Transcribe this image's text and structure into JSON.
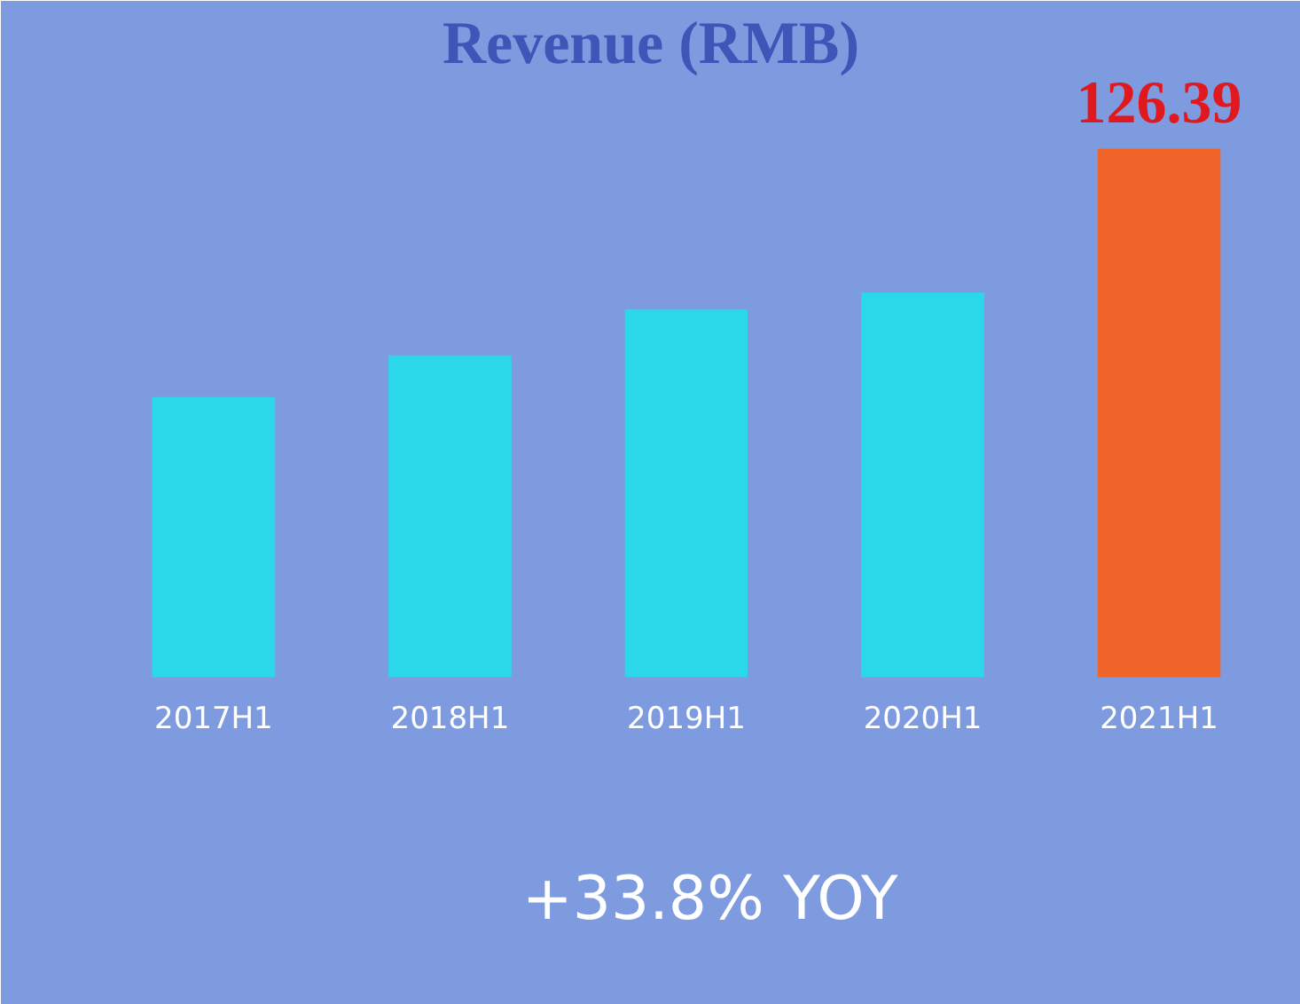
{
  "chart_data": {
    "type": "bar",
    "title": "Revenue (RMB)",
    "categories": [
      "2017H1",
      "2018H1",
      "2019H1",
      "2020H1",
      "2021H1"
    ],
    "values": [
      67,
      77,
      88,
      92,
      126.39
    ],
    "colors": [
      "#2ad8ea",
      "#2ad8ea",
      "#2ad8ea",
      "#2ad8ea",
      "#f0642a"
    ],
    "value_labels": [
      null,
      null,
      null,
      null,
      "126.39"
    ],
    "annotations": [
      "+33.8% YOY"
    ]
  }
}
